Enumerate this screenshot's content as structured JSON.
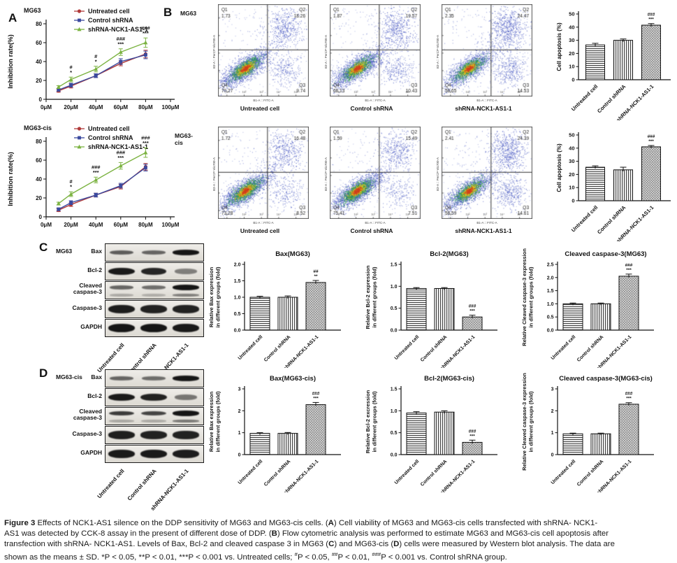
{
  "panels": {
    "a": "A",
    "b": "B",
    "c": "C",
    "d": "D"
  },
  "colors": {
    "red": "#b03a3a",
    "blue": "#3b4a9f",
    "green": "#7cb342",
    "flow_point": "#3d4fc0",
    "sig": "#111"
  },
  "chart_data": {
    "viability": [
      {
        "type": "line",
        "title": "MG63",
        "ylabel": "Inhibition rate(%)",
        "ylim": [
          0,
          80
        ],
        "ytick_vals": [
          0,
          20,
          40,
          60,
          80
        ],
        "yticks": [
          "0",
          "20",
          "40",
          "60",
          "80"
        ],
        "xlim": [
          0,
          100
        ],
        "xtick_vals": [
          0,
          20,
          40,
          60,
          80,
          100
        ],
        "xticks": [
          "0μM",
          "20μM",
          "40μM",
          "60μM",
          "80μM",
          "100μM"
        ],
        "x": [
          10,
          20,
          40,
          60,
          80
        ],
        "series": [
          {
            "name": "Untreated cell",
            "color": "#b03a3a",
            "marker": "circle",
            "values": [
              9,
              14,
              25,
              38,
              48
            ],
            "errors": [
              1.5,
              2,
              2,
              2.5,
              4
            ]
          },
          {
            "name": "Control shRNA",
            "color": "#3b4a9f",
            "marker": "square",
            "values": [
              10,
              15,
              25,
              40,
              47
            ],
            "errors": [
              1.5,
              2,
              2,
              3,
              4
            ]
          },
          {
            "name": "shRNA-NCK1-AS1-1",
            "color": "#7cb342",
            "marker": "triangle",
            "values": [
              13,
              21,
              32,
              50,
              60
            ],
            "errors": [
              1.5,
              2.5,
              3,
              3.5,
              5
            ]
          }
        ],
        "annotations": [
          {
            "x": 20,
            "lines": [
              "#",
              "*"
            ]
          },
          {
            "x": 40,
            "lines": [
              "#",
              "*"
            ]
          },
          {
            "x": 60,
            "lines": [
              "###",
              "***"
            ]
          },
          {
            "x": 80,
            "lines": [
              "###",
              "***"
            ]
          }
        ]
      },
      {
        "type": "line",
        "title": "MG63-cis",
        "ylabel": "Inhibition rate(%)",
        "ylim": [
          0,
          80
        ],
        "ytick_vals": [
          0,
          20,
          40,
          60,
          80
        ],
        "yticks": [
          "0",
          "20",
          "40",
          "60",
          "80"
        ],
        "xlim": [
          0,
          100
        ],
        "xtick_vals": [
          0,
          20,
          40,
          60,
          80,
          100
        ],
        "xticks": [
          "0μM",
          "20μM",
          "40μM",
          "60μM",
          "80μM",
          "100μM"
        ],
        "x": [
          10,
          20,
          40,
          60,
          80
        ],
        "series": [
          {
            "name": "Untreated cell",
            "color": "#b03a3a",
            "marker": "circle",
            "values": [
              7,
              13,
              23,
              32,
              53
            ],
            "errors": [
              1.5,
              2,
              2,
              2.5,
              3.5
            ]
          },
          {
            "name": "Control shRNA",
            "color": "#3b4a9f",
            "marker": "square",
            "values": [
              8,
              15,
              23,
              33,
              52
            ],
            "errors": [
              1.5,
              2,
              2,
              2.5,
              3.5
            ]
          },
          {
            "name": "shRNA-NCK1-AS1-1",
            "color": "#7cb342",
            "marker": "triangle",
            "values": [
              14,
              24,
              39,
              54,
              68
            ],
            "errors": [
              1.5,
              2.5,
              3,
              3.5,
              5
            ]
          }
        ],
        "annotations": [
          {
            "x": 20,
            "lines": [
              "#",
              "*"
            ]
          },
          {
            "x": 40,
            "lines": [
              "###",
              "***"
            ]
          },
          {
            "x": 60,
            "lines": [
              "###",
              "***"
            ]
          },
          {
            "x": 80,
            "lines": [
              "###",
              "***"
            ]
          }
        ]
      }
    ],
    "flow": {
      "type": "flow-scatter",
      "xlabel": "B1-A :: FITC-A",
      "ylabel": "B3-A :: PerCP-Vio700-A",
      "xticks": [
        "0",
        "10²",
        "10³",
        "10⁴",
        "10⁵"
      ],
      "rows": [
        {
          "label": "MG63",
          "plots": [
            {
              "group": "Untreated cell",
              "q1": "1.73",
              "q2": "18.26",
              "q3": "9.74",
              "q4": "70.27",
              "seed": 1
            },
            {
              "group": "Control shRNA",
              "q1": "1.87",
              "q2": "19.57",
              "q3": "10.43",
              "q4": "68.13",
              "seed": 2
            },
            {
              "group": "shRNA-NCK1-AS1-1",
              "q1": "2.35",
              "q2": "24.47",
              "q3": "14.53",
              "q4": "58.65",
              "seed": 3
            }
          ]
        },
        {
          "label": "MG63-cis",
          "plots": [
            {
              "group": "Untreated cell",
              "q1": "1.72",
              "q2": "16.48",
              "q3": "8.52",
              "q4": "73.28",
              "seed": 4
            },
            {
              "group": "Control shRNA",
              "q1": "1.59",
              "q2": "15.49",
              "q3": "7.51",
              "q4": "75.41",
              "seed": 5
            },
            {
              "group": "shRNA-NCK1-AS1-1",
              "q1": "2.41",
              "q2": "24.39",
              "q3": "14.61",
              "q4": "58.59",
              "seed": 6
            }
          ]
        }
      ]
    },
    "apoptosis": [
      {
        "type": "bar",
        "ylabel": "Cell apoptosis (%)",
        "ylim": [
          0,
          50
        ],
        "ytick_vals": [
          0,
          10,
          20,
          30,
          40,
          50
        ],
        "yticks": [
          "0",
          "10",
          "20",
          "30",
          "40",
          "50"
        ],
        "categories": [
          "Untreated cell",
          "Control shRNA",
          "shRNA-NCK1-AS1-1"
        ],
        "values": [
          26.5,
          30,
          41.5
        ],
        "errors": [
          1.2,
          1,
          1.2
        ],
        "sig": [
          {
            "index": 2,
            "lines": [
              "###",
              "***"
            ]
          }
        ]
      },
      {
        "type": "bar",
        "ylabel": "Cell apoptosis (%)",
        "ylim": [
          0,
          50
        ],
        "ytick_vals": [
          0,
          10,
          20,
          30,
          40,
          50
        ],
        "yticks": [
          "0",
          "10",
          "20",
          "30",
          "40",
          "50"
        ],
        "categories": [
          "Untreated cell",
          "Control shRNA",
          "shRNA-NCK1-AS1-1"
        ],
        "values": [
          25.5,
          23.5,
          41
        ],
        "errors": [
          1,
          2,
          1
        ],
        "sig": [
          {
            "index": 2,
            "lines": [
              "###",
              "***"
            ]
          }
        ]
      }
    ],
    "expression": [
      {
        "type": "bar",
        "title": "Bax(MG63)",
        "ylabel1": "Relative Bax expression",
        "ylabel2": "in different groups (fold)",
        "ylim": [
          0,
          2
        ],
        "ytick_vals": [
          0,
          0.5,
          1,
          1.5,
          2
        ],
        "yticks": [
          "0.0",
          "0.5",
          "1.0",
          "1.5",
          "2.0"
        ],
        "categories": [
          "Untreated cell",
          "Control shRNA",
          "shRNA-NCK1-AS1-1"
        ],
        "values": [
          1.0,
          1.0,
          1.45
        ],
        "errors": [
          0.03,
          0.04,
          0.06
        ],
        "sig": [
          {
            "index": 2,
            "lines": [
              "##",
              "**"
            ]
          }
        ]
      },
      {
        "type": "bar",
        "title": "Bcl-2(MG63)",
        "ylabel1": "Relative Bcl-2 expression",
        "ylabel2": "in different groups (fold)",
        "ylim": [
          0,
          1.5
        ],
        "ytick_vals": [
          0,
          0.5,
          1,
          1.5
        ],
        "yticks": [
          "0.0",
          "0.5",
          "1.0",
          "1.5"
        ],
        "categories": [
          "Untreated cell",
          "Control shRNA",
          "shRNA-NCK1-AS1-1"
        ],
        "values": [
          0.95,
          0.95,
          0.3
        ],
        "errors": [
          0.02,
          0.02,
          0.04
        ],
        "sig": [
          {
            "index": 2,
            "lines": [
              "###",
              "***"
            ]
          }
        ]
      },
      {
        "type": "bar",
        "title": "Cleaved caspase-3(MG63)",
        "ylabel1": "Relative Cleaved caspase-3 expression",
        "ylabel2": "in different groups (fold)",
        "ylim": [
          0,
          2.5
        ],
        "ytick_vals": [
          0,
          0.5,
          1,
          1.5,
          2,
          2.5
        ],
        "yticks": [
          "0.0",
          "0.5",
          "1.0",
          "1.5",
          "2.0",
          "2.5"
        ],
        "categories": [
          "Untreated cell",
          "Control shRNA",
          "shRNA-NCK1-AS1-1"
        ],
        "values": [
          1.0,
          1.0,
          2.05
        ],
        "errors": [
          0.03,
          0.03,
          0.08
        ],
        "sig": [
          {
            "index": 2,
            "lines": [
              "###",
              "***"
            ]
          }
        ]
      },
      {
        "type": "bar",
        "title": "Bax(MG63-cis)",
        "ylabel1": "Relative Bax expression",
        "ylabel2": "in different groups (fold)",
        "ylim": [
          0,
          3
        ],
        "ytick_vals": [
          0,
          1,
          2,
          3
        ],
        "yticks": [
          "0",
          "1",
          "2",
          "3"
        ],
        "categories": [
          "Untreated cell",
          "Control shRNA",
          "shRNA-NCK1-AS1-1"
        ],
        "values": [
          0.97,
          0.97,
          2.28
        ],
        "errors": [
          0.03,
          0.04,
          0.1
        ],
        "sig": [
          {
            "index": 2,
            "lines": [
              "###",
              "***"
            ]
          }
        ]
      },
      {
        "type": "bar",
        "title": "Bcl-2(MG63-cis)",
        "ylabel1": "Relative Bcl-2 excression",
        "ylabel2": "in different groups (fold)",
        "ylim": [
          0,
          1.5
        ],
        "ytick_vals": [
          0,
          0.5,
          1,
          1.5
        ],
        "yticks": [
          "0.0",
          "0.5",
          "1.0",
          "1.5"
        ],
        "categories": [
          "Untreated cell",
          "Control shRNA",
          "shRNA-NCK1-AS1-1"
        ],
        "values": [
          0.95,
          0.97,
          0.28
        ],
        "errors": [
          0.03,
          0.03,
          0.05
        ],
        "sig": [
          {
            "index": 2,
            "lines": [
              "###",
              "***"
            ]
          }
        ]
      },
      {
        "type": "bar",
        "title": "Cleaved caspase-3(MG63-cis)",
        "ylabel1": "Relative Cleaved caspase-3 expression",
        "ylabel2": "in different groups (fold)",
        "ylim": [
          0,
          3
        ],
        "ytick_vals": [
          0,
          1,
          2,
          3
        ],
        "yticks": [
          "0",
          "1",
          "2",
          "3"
        ],
        "categories": [
          "Untreated cell",
          "Control shRNA",
          "shRNA-NCK1-AS1-1"
        ],
        "values": [
          0.95,
          0.95,
          2.3
        ],
        "errors": [
          0.03,
          0.03,
          0.07
        ],
        "sig": [
          {
            "index": 2,
            "lines": [
              "###",
              "***"
            ]
          }
        ]
      }
    ],
    "blots": [
      {
        "cell_line": "MG63",
        "columns": [
          "Untreated cell",
          "Control shRNA",
          "shRNA-NCK1-AS1-1"
        ],
        "rows": [
          {
            "label": "Bax",
            "weight": "thin",
            "bands": [
              0.55,
              0.5,
              0.97
            ]
          },
          {
            "label": "Bcl-2",
            "weight": "mid",
            "bands": [
              0.95,
              0.88,
              0.35
            ]
          },
          {
            "label": "Cleaved caspase-3",
            "wrap": true,
            "weight": "thin",
            "bands": [
              0.5,
              0.45,
              0.98
            ],
            "bands2": [
              0.18,
              0.15,
              0.55
            ]
          },
          {
            "label": "Caspase-3",
            "weight": "thick",
            "bands": [
              0.93,
              0.9,
              0.9
            ]
          },
          {
            "label": "GAPDH",
            "weight": "thick",
            "bands": [
              0.97,
              0.97,
              0.95
            ]
          }
        ]
      },
      {
        "cell_line": "MG63-cis",
        "columns": [
          "Untreated cell",
          "Control shRNA",
          "shRNA-NCK1-AS1-1"
        ],
        "rows": [
          {
            "label": "Bax",
            "weight": "thin",
            "bands": [
              0.5,
              0.45,
              0.97
            ]
          },
          {
            "label": "Bcl-2",
            "weight": "mid",
            "bands": [
              0.95,
              0.9,
              0.4
            ]
          },
          {
            "label": "Cleaved caspase-3",
            "wrap": true,
            "weight": "thin",
            "bands": [
              0.75,
              0.7,
              0.98
            ],
            "bands2": [
              0.2,
              0.18,
              0.6
            ]
          },
          {
            "label": "Caspase-3",
            "weight": "thick",
            "bands": [
              0.92,
              0.9,
              0.9
            ]
          },
          {
            "label": "GAPDH",
            "weight": "thick",
            "bands": [
              0.95,
              0.95,
              0.93
            ]
          }
        ]
      }
    ]
  },
  "caption": {
    "lines": [
      [
        {
          "t": "Figure 3 ",
          "b": true
        },
        {
          "t": "Effects of NCK1-AS1 silence on the DDP sensitivity of MG63 and MG63-cis cells. ("
        },
        {
          "t": "A",
          "b": true
        },
        {
          "t": ") Cell viability of MG63 and MG63-cis cells transfected with shRNA- NCK1-"
        }
      ],
      [
        {
          "t": "AS1 was detected by CCK-8 assay in the present of different dose of DDP. ("
        },
        {
          "t": "B",
          "b": true
        },
        {
          "t": ") Flow cytometric analysis was performed to estimate MG63 and MG63-cis cell apoptosis after"
        }
      ],
      [
        {
          "t": "transfection with shRNA- NCK1-AS1. Levels of Bax, Bcl-2 and cleaved caspase 3 in MG63 ("
        },
        {
          "t": "C",
          "b": true
        },
        {
          "t": ") and MG63-cis ("
        },
        {
          "t": "D",
          "b": true
        },
        {
          "t": ") cells were measured by Western blot analysis. The data are"
        }
      ],
      [
        {
          "t": "shown as the means ± SD. *P < 0.05, **P < 0.01, ***P < 0.001 vs. Untreated cells; "
        },
        {
          "t": "#",
          "sup": true
        },
        {
          "t": "P < 0.05, "
        },
        {
          "t": "##",
          "sup": true
        },
        {
          "t": "P < 0.01, "
        },
        {
          "t": "###",
          "sup": true
        },
        {
          "t": "P < 0.001 vs. Control shRNA group."
        }
      ]
    ]
  }
}
